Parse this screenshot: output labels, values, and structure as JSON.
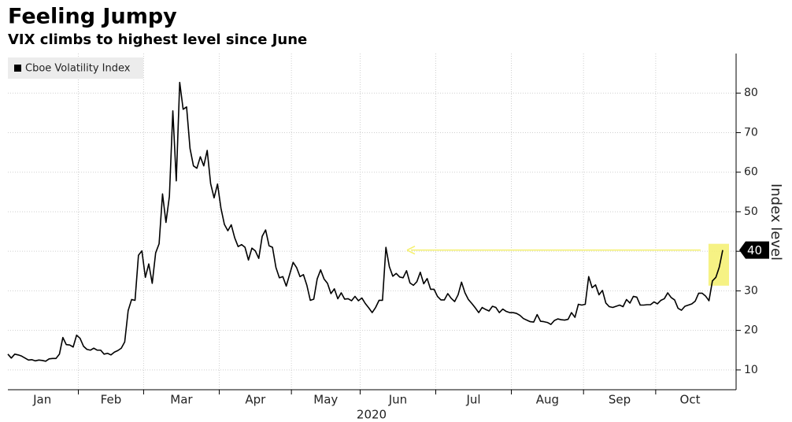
{
  "chart_data": {
    "type": "line",
    "title": "Feeling Jumpy",
    "subtitle": "VIX climbs to highest level since June",
    "legend": "Cboe Volatility Index",
    "y_label": "Index level",
    "x_label": "2020",
    "end_label": "40",
    "color": "#000000",
    "highlight_color": "#f5f06e",
    "ylim": [
      5,
      90
    ],
    "yticks": [
      10,
      20,
      30,
      40,
      50,
      60,
      70,
      80
    ],
    "grid": true,
    "months": [
      {
        "label": "Jan",
        "values": [
          14.0,
          13.0,
          14.0,
          13.8,
          13.5,
          13.0,
          12.5,
          12.6,
          12.3,
          12.5,
          12.4,
          12.2,
          12.8,
          12.9,
          12.9,
          14.0,
          18.2,
          16.4,
          16.3,
          15.8,
          18.8
        ]
      },
      {
        "label": "Feb",
        "values": [
          18.0,
          16.0,
          15.2,
          15.0,
          15.5,
          15.0,
          15.0,
          14.0,
          14.2,
          13.8,
          14.5,
          14.9,
          15.5,
          17.1,
          25.0,
          27.8,
          27.6,
          39.0,
          40.1
        ]
      },
      {
        "label": "Mar",
        "values": [
          33.4,
          36.8,
          31.9,
          39.6,
          41.9,
          54.5,
          47.3,
          53.9,
          75.5,
          57.8,
          82.7,
          75.9,
          76.5,
          66.0,
          61.6,
          61.0,
          63.9,
          61.6,
          65.5,
          57.1,
          53.5,
          57.0
        ]
      },
      {
        "label": "Apr",
        "values": [
          50.9,
          46.8,
          45.2,
          46.7,
          43.4,
          41.2,
          41.7,
          41.0,
          37.8,
          40.8,
          40.1,
          38.2,
          43.8,
          45.4,
          41.4,
          41.0,
          35.9,
          33.3,
          33.6,
          31.2,
          34.2
        ]
      },
      {
        "label": "May",
        "values": [
          37.2,
          35.9,
          33.6,
          34.1,
          31.4,
          27.6,
          27.9,
          33.0,
          35.3,
          33.0,
          31.9,
          29.3,
          30.5,
          28.0,
          29.5,
          27.9,
          28.0,
          27.5,
          28.6,
          27.5
        ]
      },
      {
        "label": "Jun",
        "values": [
          28.2,
          26.8,
          25.7,
          24.5,
          25.8,
          27.6,
          27.6,
          41.0,
          36.1,
          33.7,
          34.4,
          33.5,
          33.3,
          35.1,
          32.0,
          31.4,
          32.3,
          34.7,
          31.8,
          33.1,
          30.4,
          30.4
        ]
      },
      {
        "label": "Jul",
        "values": [
          28.6,
          27.7,
          27.7,
          29.3,
          28.1,
          27.3,
          29.0,
          32.2,
          29.5,
          27.8,
          26.8,
          25.7,
          24.5,
          25.8,
          25.3,
          24.9,
          26.1,
          25.8,
          24.5,
          25.4,
          24.8,
          24.5
        ]
      },
      {
        "label": "Aug",
        "values": [
          24.5,
          24.3,
          23.8,
          23.0,
          22.6,
          22.2,
          22.1,
          24.0,
          22.3,
          22.2,
          22.0,
          21.5,
          22.5,
          22.9,
          22.7,
          22.6,
          22.8,
          24.5,
          23.3,
          26.6,
          26.4
        ]
      },
      {
        "label": "Sep",
        "values": [
          26.6,
          33.6,
          30.8,
          31.5,
          29.0,
          30.1,
          26.9,
          26.0,
          25.8,
          26.1,
          26.4,
          26.0,
          27.8,
          26.9,
          28.6,
          28.4,
          26.4,
          26.4,
          26.5,
          26.5,
          27.2
        ]
      },
      {
        "label": "Oct",
        "values": [
          26.7,
          27.6,
          28.0,
          29.5,
          28.3,
          27.7,
          25.6,
          25.1,
          26.1,
          26.4,
          26.7,
          27.4,
          29.4,
          29.4,
          28.7,
          27.5,
          32.5,
          33.4,
          36.0,
          40.3
        ]
      }
    ]
  }
}
